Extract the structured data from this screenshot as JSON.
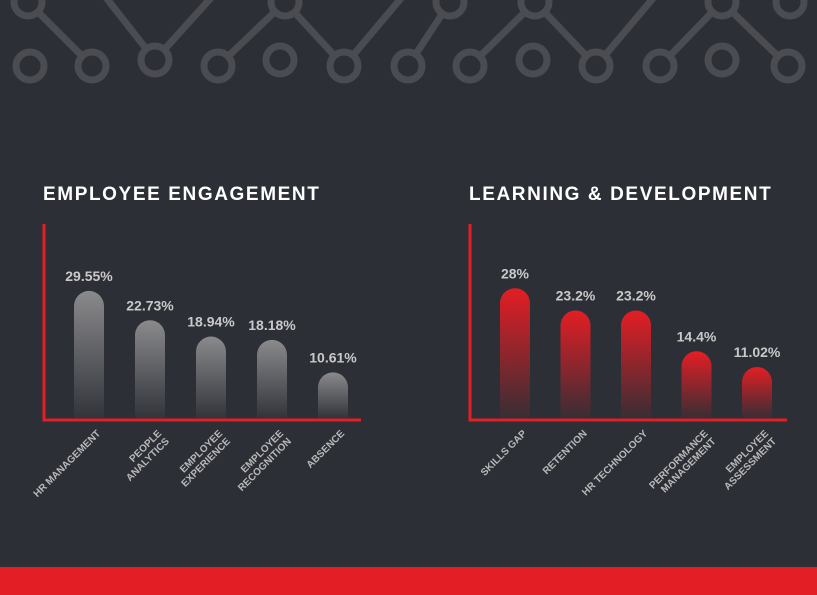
{
  "colors": {
    "background": "#2d2f36",
    "pattern": "#4a4c52",
    "accent": "#e31e24",
    "grey_bar": "#8a8a8c",
    "value_text": "#c9c9c9",
    "tick_text": "#b9b9b9"
  },
  "chart_data": [
    {
      "type": "bar",
      "title": "EMPLOYEE ENGAGEMENT",
      "categories": [
        "HR MANAGEMENT",
        "PEOPLE ANALYTICS",
        "EMPLOYEE EXPERIENCE",
        "EMPLOYEE RECOGNITION",
        "ABSENCE"
      ],
      "values": [
        29.55,
        22.73,
        18.94,
        18.18,
        10.61
      ],
      "value_labels": [
        "29.55%",
        "22.73%",
        "18.94%",
        "18.18%",
        "10.61%"
      ],
      "ylim": [
        0,
        30
      ],
      "grid": false,
      "bar_color": "grey"
    },
    {
      "type": "bar",
      "title": "LEARNING & DEVELOPMENT",
      "categories": [
        "SKILLS GAP",
        "RETENTION",
        "HR TECHNOLOGY",
        "PERFORMANCE MANAGEMENT",
        "EMPLOYEE ASSESSMENT"
      ],
      "values": [
        28,
        23.2,
        23.2,
        14.4,
        11.02
      ],
      "value_labels": [
        "28%",
        "23.2%",
        "23.2%",
        "14.4%",
        "11.02%"
      ],
      "ylim": [
        0,
        30
      ],
      "grid": false,
      "bar_color": "red"
    }
  ]
}
